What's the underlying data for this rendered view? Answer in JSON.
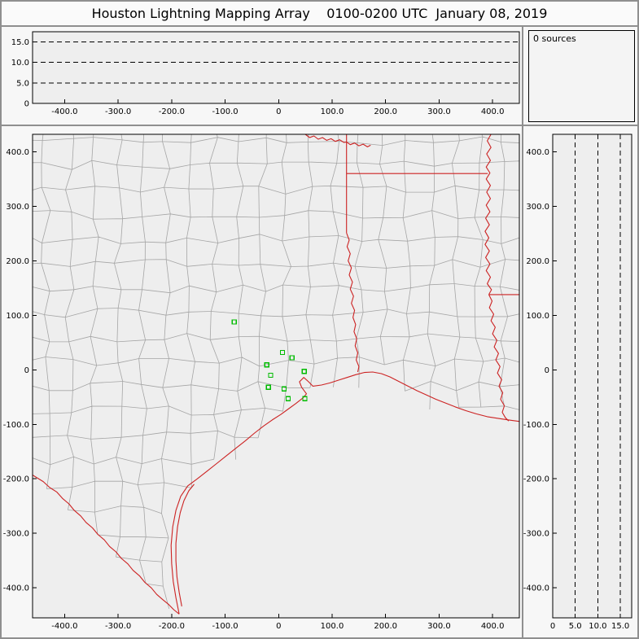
{
  "window": {
    "title": "Houston Lightning Mapping Array    0100-0200 UTC  January 08, 2019"
  },
  "sources_panel": {
    "label": "0 sources"
  },
  "colors": {
    "state_border": "#cc2222",
    "county_line": "#a5a5a5",
    "station": "#00bb00",
    "axis": "#000000",
    "plot_bg": "#eeeeee",
    "panel_bg": "#f7f7f7",
    "frame": "#8f8f8f"
  },
  "chart_data": [
    {
      "id": "ew_altitude",
      "type": "scatter",
      "title": "Altitude (km) vs East-West distance (km)",
      "x_range": [
        -460,
        450
      ],
      "y_range": [
        0,
        17.5
      ],
      "x_ticks": [
        {
          "v": -400,
          "label": "-400.0"
        },
        {
          "v": -300,
          "label": "-300.0"
        },
        {
          "v": -200,
          "label": "-200.0"
        },
        {
          "v": -100,
          "label": "-100.0"
        },
        {
          "v": 0,
          "label": "0"
        },
        {
          "v": 100,
          "label": "100.0"
        },
        {
          "v": 200,
          "label": "200.0"
        },
        {
          "v": 300,
          "label": "300.0"
        },
        {
          "v": 400,
          "label": "400.0"
        }
      ],
      "y_ticks": [
        {
          "v": 15,
          "label": "15.0"
        },
        {
          "v": 10,
          "label": "10.0"
        },
        {
          "v": 5,
          "label": "5.0"
        },
        {
          "v": 0,
          "label": "0"
        }
      ],
      "dashed_y": [
        5,
        10,
        15
      ],
      "points": []
    },
    {
      "id": "plan_view",
      "type": "scatter",
      "title": "Plan view map, km east-west vs km north-south (Houston LMA network, Texas / Louisiana coast)",
      "x_range": [
        -460,
        450
      ],
      "y_range": [
        -455,
        432
      ],
      "x_ticks": [
        {
          "v": -400,
          "label": "-400.0"
        },
        {
          "v": -300,
          "label": "-300.0"
        },
        {
          "v": -200,
          "label": "-200.0"
        },
        {
          "v": -100,
          "label": "-100.0"
        },
        {
          "v": 0,
          "label": "0"
        },
        {
          "v": 100,
          "label": "100.0"
        },
        {
          "v": 200,
          "label": "200.0"
        },
        {
          "v": 300,
          "label": "300.0"
        },
        {
          "v": 400,
          "label": "400.0"
        }
      ],
      "y_ticks": [
        {
          "v": 400,
          "label": "400.0"
        },
        {
          "v": 300,
          "label": "300.0"
        },
        {
          "v": 200,
          "label": "200.0"
        },
        {
          "v": 100,
          "label": "100.0"
        },
        {
          "v": 0,
          "label": "0"
        },
        {
          "v": -100,
          "label": "-100.0"
        },
        {
          "v": -200,
          "label": "-200.0"
        },
        {
          "v": -300,
          "label": "-300.0"
        },
        {
          "v": -400,
          "label": "-400.0"
        }
      ],
      "points": [],
      "stations": [
        [
          -83,
          88
        ],
        [
          7,
          32
        ],
        [
          25,
          22
        ],
        [
          -22,
          9
        ],
        [
          48,
          -3
        ],
        [
          -15,
          -10
        ],
        [
          -19,
          -32
        ],
        [
          10,
          -35
        ],
        [
          18,
          -53
        ],
        [
          49,
          -53
        ]
      ],
      "counties": {
        "style": "procedural-jittered-grid",
        "cell_km": 45,
        "jitter_km": 9,
        "seed": 20190108
      },
      "map_features": {
        "rio_grande": [
          [
            -468,
            -188
          ],
          [
            -455,
            -196
          ],
          [
            -440,
            -205
          ],
          [
            -428,
            -216
          ],
          [
            -415,
            -224
          ],
          [
            -404,
            -236
          ],
          [
            -392,
            -246
          ],
          [
            -382,
            -258
          ],
          [
            -370,
            -268
          ],
          [
            -360,
            -280
          ],
          [
            -348,
            -290
          ],
          [
            -338,
            -302
          ],
          [
            -326,
            -312
          ],
          [
            -316,
            -324
          ],
          [
            -304,
            -334
          ],
          [
            -294,
            -346
          ],
          [
            -282,
            -356
          ],
          [
            -272,
            -368
          ],
          [
            -260,
            -378
          ],
          [
            -250,
            -390
          ],
          [
            -238,
            -400
          ],
          [
            -228,
            -412
          ],
          [
            -216,
            -422
          ],
          [
            -206,
            -430
          ],
          [
            -196,
            -440
          ],
          [
            -186,
            -448
          ]
        ],
        "coastline": [
          [
            -186,
            -448
          ],
          [
            -192,
            -418
          ],
          [
            -197,
            -388
          ],
          [
            -200,
            -356
          ],
          [
            -201,
            -322
          ],
          [
            -198,
            -288
          ],
          [
            -192,
            -258
          ],
          [
            -183,
            -232
          ],
          [
            -170,
            -213
          ],
          [
            -152,
            -200
          ],
          [
            -134,
            -186
          ],
          [
            -116,
            -172
          ],
          [
            -98,
            -158
          ],
          [
            -80,
            -144
          ],
          [
            -62,
            -130
          ],
          [
            -45,
            -116
          ],
          [
            -28,
            -103
          ],
          [
            -12,
            -92
          ],
          [
            4,
            -82
          ],
          [
            18,
            -72
          ],
          [
            32,
            -62
          ],
          [
            45,
            -52
          ],
          [
            52,
            -44
          ],
          [
            43,
            -32
          ],
          [
            39,
            -22
          ],
          [
            47,
            -14
          ],
          [
            56,
            -22
          ],
          [
            64,
            -30
          ],
          [
            80,
            -28
          ],
          [
            96,
            -24
          ],
          [
            112,
            -19
          ],
          [
            128,
            -14
          ],
          [
            144,
            -9
          ],
          [
            160,
            -5
          ],
          [
            176,
            -4
          ],
          [
            192,
            -7
          ],
          [
            208,
            -13
          ],
          [
            224,
            -21
          ],
          [
            240,
            -29
          ],
          [
            258,
            -38
          ],
          [
            276,
            -46
          ],
          [
            294,
            -54
          ],
          [
            312,
            -61
          ],
          [
            330,
            -68
          ],
          [
            350,
            -75
          ],
          [
            370,
            -81
          ],
          [
            390,
            -86
          ],
          [
            410,
            -89
          ],
          [
            430,
            -92
          ],
          [
            452,
            -95
          ],
          [
            475,
            -96
          ]
        ],
        "barrier_island": [
          [
            -181,
            -434
          ],
          [
            -186,
            -408
          ],
          [
            -190,
            -380
          ],
          [
            -192,
            -350
          ],
          [
            -192,
            -318
          ],
          [
            -189,
            -288
          ],
          [
            -184,
            -262
          ],
          [
            -177,
            -240
          ],
          [
            -168,
            -222
          ],
          [
            -158,
            -210
          ]
        ],
        "red_river": [
          [
            50,
            432
          ],
          [
            58,
            426
          ],
          [
            66,
            429
          ],
          [
            74,
            423
          ],
          [
            82,
            426
          ],
          [
            90,
            421
          ],
          [
            98,
            424
          ],
          [
            106,
            419
          ],
          [
            114,
            422
          ],
          [
            122,
            417
          ],
          [
            127,
            418
          ],
          [
            134,
            413
          ],
          [
            142,
            416
          ],
          [
            150,
            411
          ],
          [
            158,
            414
          ],
          [
            166,
            409
          ],
          [
            172,
            412
          ]
        ],
        "state_line_east": [
          [
            127,
            432
          ],
          [
            127,
            251
          ]
        ],
        "sabine_river": [
          [
            127,
            251
          ],
          [
            132,
            238
          ],
          [
            128,
            226
          ],
          [
            134,
            213
          ],
          [
            130,
            200
          ],
          [
            136,
            187
          ],
          [
            132,
            174
          ],
          [
            138,
            161
          ],
          [
            134,
            148
          ],
          [
            140,
            135
          ],
          [
            136,
            122
          ],
          [
            142,
            109
          ],
          [
            139,
            96
          ],
          [
            144,
            83
          ],
          [
            141,
            70
          ],
          [
            146,
            57
          ],
          [
            143,
            44
          ],
          [
            148,
            31
          ],
          [
            145,
            18
          ],
          [
            150,
            6
          ],
          [
            148,
            -4
          ]
        ],
        "la_ar_line": [
          [
            127,
            360
          ],
          [
            391,
            360
          ]
        ],
        "mississippi_river": [
          [
            397,
            432
          ],
          [
            390,
            420
          ],
          [
            397,
            408
          ],
          [
            389,
            396
          ],
          [
            396,
            384
          ],
          [
            388,
            372
          ],
          [
            395,
            361
          ],
          [
            388,
            350
          ],
          [
            396,
            338
          ],
          [
            389,
            326
          ],
          [
            396,
            314
          ],
          [
            388,
            302
          ],
          [
            395,
            290
          ],
          [
            387,
            278
          ],
          [
            394,
            266
          ],
          [
            386,
            254
          ],
          [
            393,
            242
          ],
          [
            386,
            230
          ],
          [
            394,
            218
          ],
          [
            387,
            206
          ],
          [
            395,
            194
          ],
          [
            388,
            182
          ],
          [
            396,
            170
          ],
          [
            390,
            158
          ],
          [
            398,
            147
          ],
          [
            393,
            138
          ]
        ],
        "ms_la_31n": [
          [
            393,
            138
          ],
          [
            455,
            138
          ]
        ],
        "mississippi_lower": [
          [
            393,
            138
          ],
          [
            399,
            126
          ],
          [
            394,
            114
          ],
          [
            402,
            102
          ],
          [
            397,
            90
          ],
          [
            405,
            78
          ],
          [
            400,
            66
          ],
          [
            408,
            54
          ],
          [
            403,
            42
          ],
          [
            411,
            30
          ],
          [
            406,
            18
          ],
          [
            414,
            6
          ],
          [
            409,
            -6
          ],
          [
            417,
            -18
          ],
          [
            412,
            -30
          ],
          [
            419,
            -42
          ],
          [
            415,
            -54
          ],
          [
            422,
            -66
          ],
          [
            418,
            -78
          ],
          [
            424,
            -88
          ],
          [
            430,
            -94
          ]
        ]
      }
    },
    {
      "id": "ns_altitude",
      "type": "scatter",
      "title": "North-South distance (km) vs altitude (km)",
      "x_range": [
        0,
        17.5
      ],
      "y_range": [
        -455,
        432
      ],
      "x_ticks": [
        {
          "v": 0,
          "label": "0"
        },
        {
          "v": 5,
          "label": "5.0"
        },
        {
          "v": 10,
          "label": "10.0"
        },
        {
          "v": 15,
          "label": "15.0"
        }
      ],
      "y_ticks": [
        {
          "v": 400,
          "label": "400.0"
        },
        {
          "v": 300,
          "label": "300.0"
        },
        {
          "v": 200,
          "label": "200.0"
        },
        {
          "v": 100,
          "label": "100.0"
        },
        {
          "v": 0,
          "label": "0"
        },
        {
          "v": -100,
          "label": "-100.0"
        },
        {
          "v": -200,
          "label": "-200.0"
        },
        {
          "v": -300,
          "label": "-300.0"
        },
        {
          "v": -400,
          "label": "-400.0"
        }
      ],
      "dashed_x": [
        5,
        10,
        15
      ],
      "points": []
    }
  ]
}
